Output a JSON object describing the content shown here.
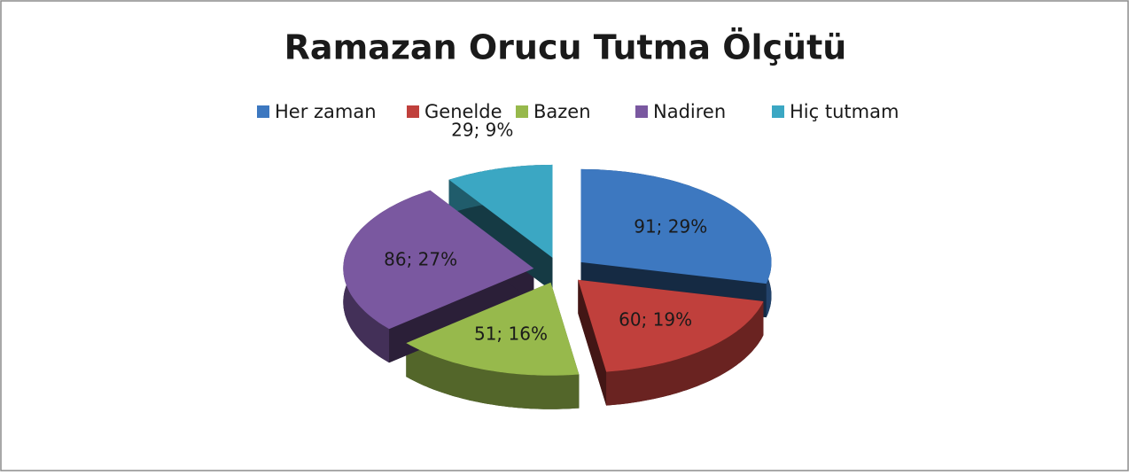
{
  "chart_data": {
    "type": "pie",
    "title": "Ramazan Orucu Tutma Ölçütü",
    "categories": [
      "Her zaman",
      "Genelde",
      "Bazen",
      "Nadiren",
      "Hiç tutmam"
    ],
    "values": [
      91,
      60,
      51,
      86,
      29
    ],
    "value_labels": [
      "91; 29%",
      "60; 19%",
      "51; 16%",
      "86; 27%",
      "29; 9%"
    ],
    "colors": [
      "#3d78c0",
      "#c0403c",
      "#97b94c",
      "#7a58a0",
      "#3ba7c3"
    ],
    "legend": "top"
  }
}
